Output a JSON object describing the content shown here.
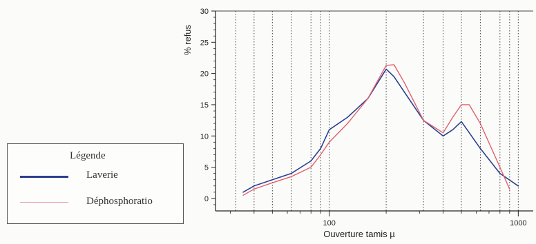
{
  "chart_data": {
    "type": "line",
    "xlabel": "Ouverture tamis µ",
    "ylabel": "% refus",
    "xscale": "log",
    "xlim": [
      25,
      1200
    ],
    "ylim": [
      -2,
      30
    ],
    "y_ticks": [
      0,
      5,
      10,
      15,
      20,
      25,
      30
    ],
    "x_ticks": [
      100,
      1000
    ],
    "x_tick_labels": [
      "100",
      "1000"
    ],
    "grid_x": [
      32,
      40,
      50,
      63,
      80,
      90,
      100,
      200,
      315,
      400,
      500,
      630,
      800,
      900,
      1000
    ],
    "legend_position": "bottom-left outside",
    "series": [
      {
        "name": "Laverie",
        "color": "#2b3f8f",
        "x": [
          35,
          40,
          50,
          63,
          80,
          90,
          100,
          125,
          160,
          200,
          220,
          250,
          315,
          400,
          450,
          500,
          630,
          800,
          1000
        ],
        "y": [
          1,
          2,
          3,
          4,
          6,
          8,
          11,
          13,
          16,
          20.7,
          19.5,
          17,
          12.5,
          10,
          11,
          12.3,
          8,
          4,
          2
        ]
      },
      {
        "name": "Déphosphoratio",
        "color": "#e0606c",
        "x": [
          35,
          40,
          50,
          63,
          80,
          90,
          100,
          125,
          160,
          200,
          220,
          250,
          315,
          400,
          450,
          500,
          550,
          630,
          800,
          900
        ],
        "y": [
          0.5,
          1.5,
          2.5,
          3.5,
          5,
          7,
          9,
          12,
          16,
          21.3,
          21.4,
          18.5,
          12.5,
          10.5,
          13,
          15,
          15,
          12,
          5,
          1.5
        ]
      }
    ]
  },
  "legend": {
    "title": "Légende",
    "items": [
      {
        "label": "Laverie",
        "color": "#2b3f8f"
      },
      {
        "label": "Déphosphoratio",
        "color": "#e0606c"
      }
    ]
  }
}
